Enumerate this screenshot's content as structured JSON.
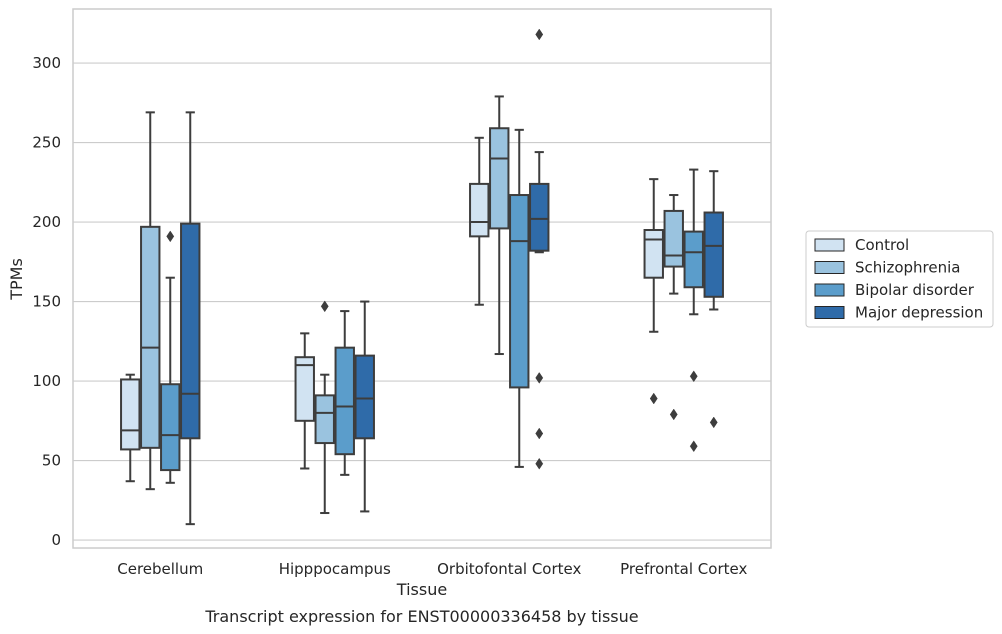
{
  "chart_data": {
    "type": "boxplot",
    "title": "Transcript expression for ENST00000336458 by tissue",
    "xlabel": "Tissue",
    "ylabel": "TPMs",
    "ylim": [
      -5,
      334
    ],
    "yticks": [
      0,
      50,
      100,
      150,
      200,
      250,
      300
    ],
    "grid": true,
    "legend_position": "right",
    "categories": [
      "Cerebellum",
      "Hipppocampus",
      "Orbitofontal Cortex",
      "Prefrontal Cortex"
    ],
    "series": [
      {
        "name": "Control",
        "color": "#d1e3f2",
        "boxes": [
          {
            "q1": 57,
            "median": 69,
            "q3": 101,
            "whisker_low": 37,
            "whisker_high": 104,
            "outliers": []
          },
          {
            "q1": 75,
            "median": 110,
            "q3": 115,
            "whisker_low": 45,
            "whisker_high": 130,
            "outliers": []
          },
          {
            "q1": 191,
            "median": 200,
            "q3": 224,
            "whisker_low": 148,
            "whisker_high": 253,
            "outliers": []
          },
          {
            "q1": 165,
            "median": 189,
            "q3": 195,
            "whisker_low": 131,
            "whisker_high": 227,
            "outliers": [
              89
            ]
          }
        ]
      },
      {
        "name": "Schizophrenia",
        "color": "#9ac3df",
        "boxes": [
          {
            "q1": 58,
            "median": 121,
            "q3": 197,
            "whisker_low": 32,
            "whisker_high": 269,
            "outliers": []
          },
          {
            "q1": 61,
            "median": 80,
            "q3": 91,
            "whisker_low": 17,
            "whisker_high": 104,
            "outliers": [
              147
            ]
          },
          {
            "q1": 196,
            "median": 240,
            "q3": 259,
            "whisker_low": 117,
            "whisker_high": 279,
            "outliers": []
          },
          {
            "q1": 172,
            "median": 179,
            "q3": 207,
            "whisker_low": 155,
            "whisker_high": 217,
            "outliers": [
              79
            ]
          }
        ]
      },
      {
        "name": "Bipolar disorder",
        "color": "#5b9dcb",
        "boxes": [
          {
            "q1": 44,
            "median": 66,
            "q3": 98,
            "whisker_low": 36,
            "whisker_high": 165,
            "outliers": [
              191
            ]
          },
          {
            "q1": 54,
            "median": 84,
            "q3": 121,
            "whisker_low": 41,
            "whisker_high": 144,
            "outliers": []
          },
          {
            "q1": 96,
            "median": 188,
            "q3": 217,
            "whisker_low": 46,
            "whisker_high": 258,
            "outliers": []
          },
          {
            "q1": 159,
            "median": 181,
            "q3": 194,
            "whisker_low": 142,
            "whisker_high": 233,
            "outliers": [
              103,
              59
            ]
          }
        ]
      },
      {
        "name": "Major depression",
        "color": "#2f6ba9",
        "boxes": [
          {
            "q1": 64,
            "median": 92,
            "q3": 199,
            "whisker_low": 10,
            "whisker_high": 269,
            "outliers": []
          },
          {
            "q1": 64,
            "median": 89,
            "q3": 116,
            "whisker_low": 18,
            "whisker_high": 150,
            "outliers": []
          },
          {
            "q1": 182,
            "median": 202,
            "q3": 224,
            "whisker_low": 181,
            "whisker_high": 244,
            "outliers": [
              318,
              102,
              67,
              48
            ]
          },
          {
            "q1": 153,
            "median": 185,
            "q3": 206,
            "whisker_low": 145,
            "whisker_high": 232,
            "outliers": [
              74
            ]
          }
        ]
      }
    ]
  }
}
